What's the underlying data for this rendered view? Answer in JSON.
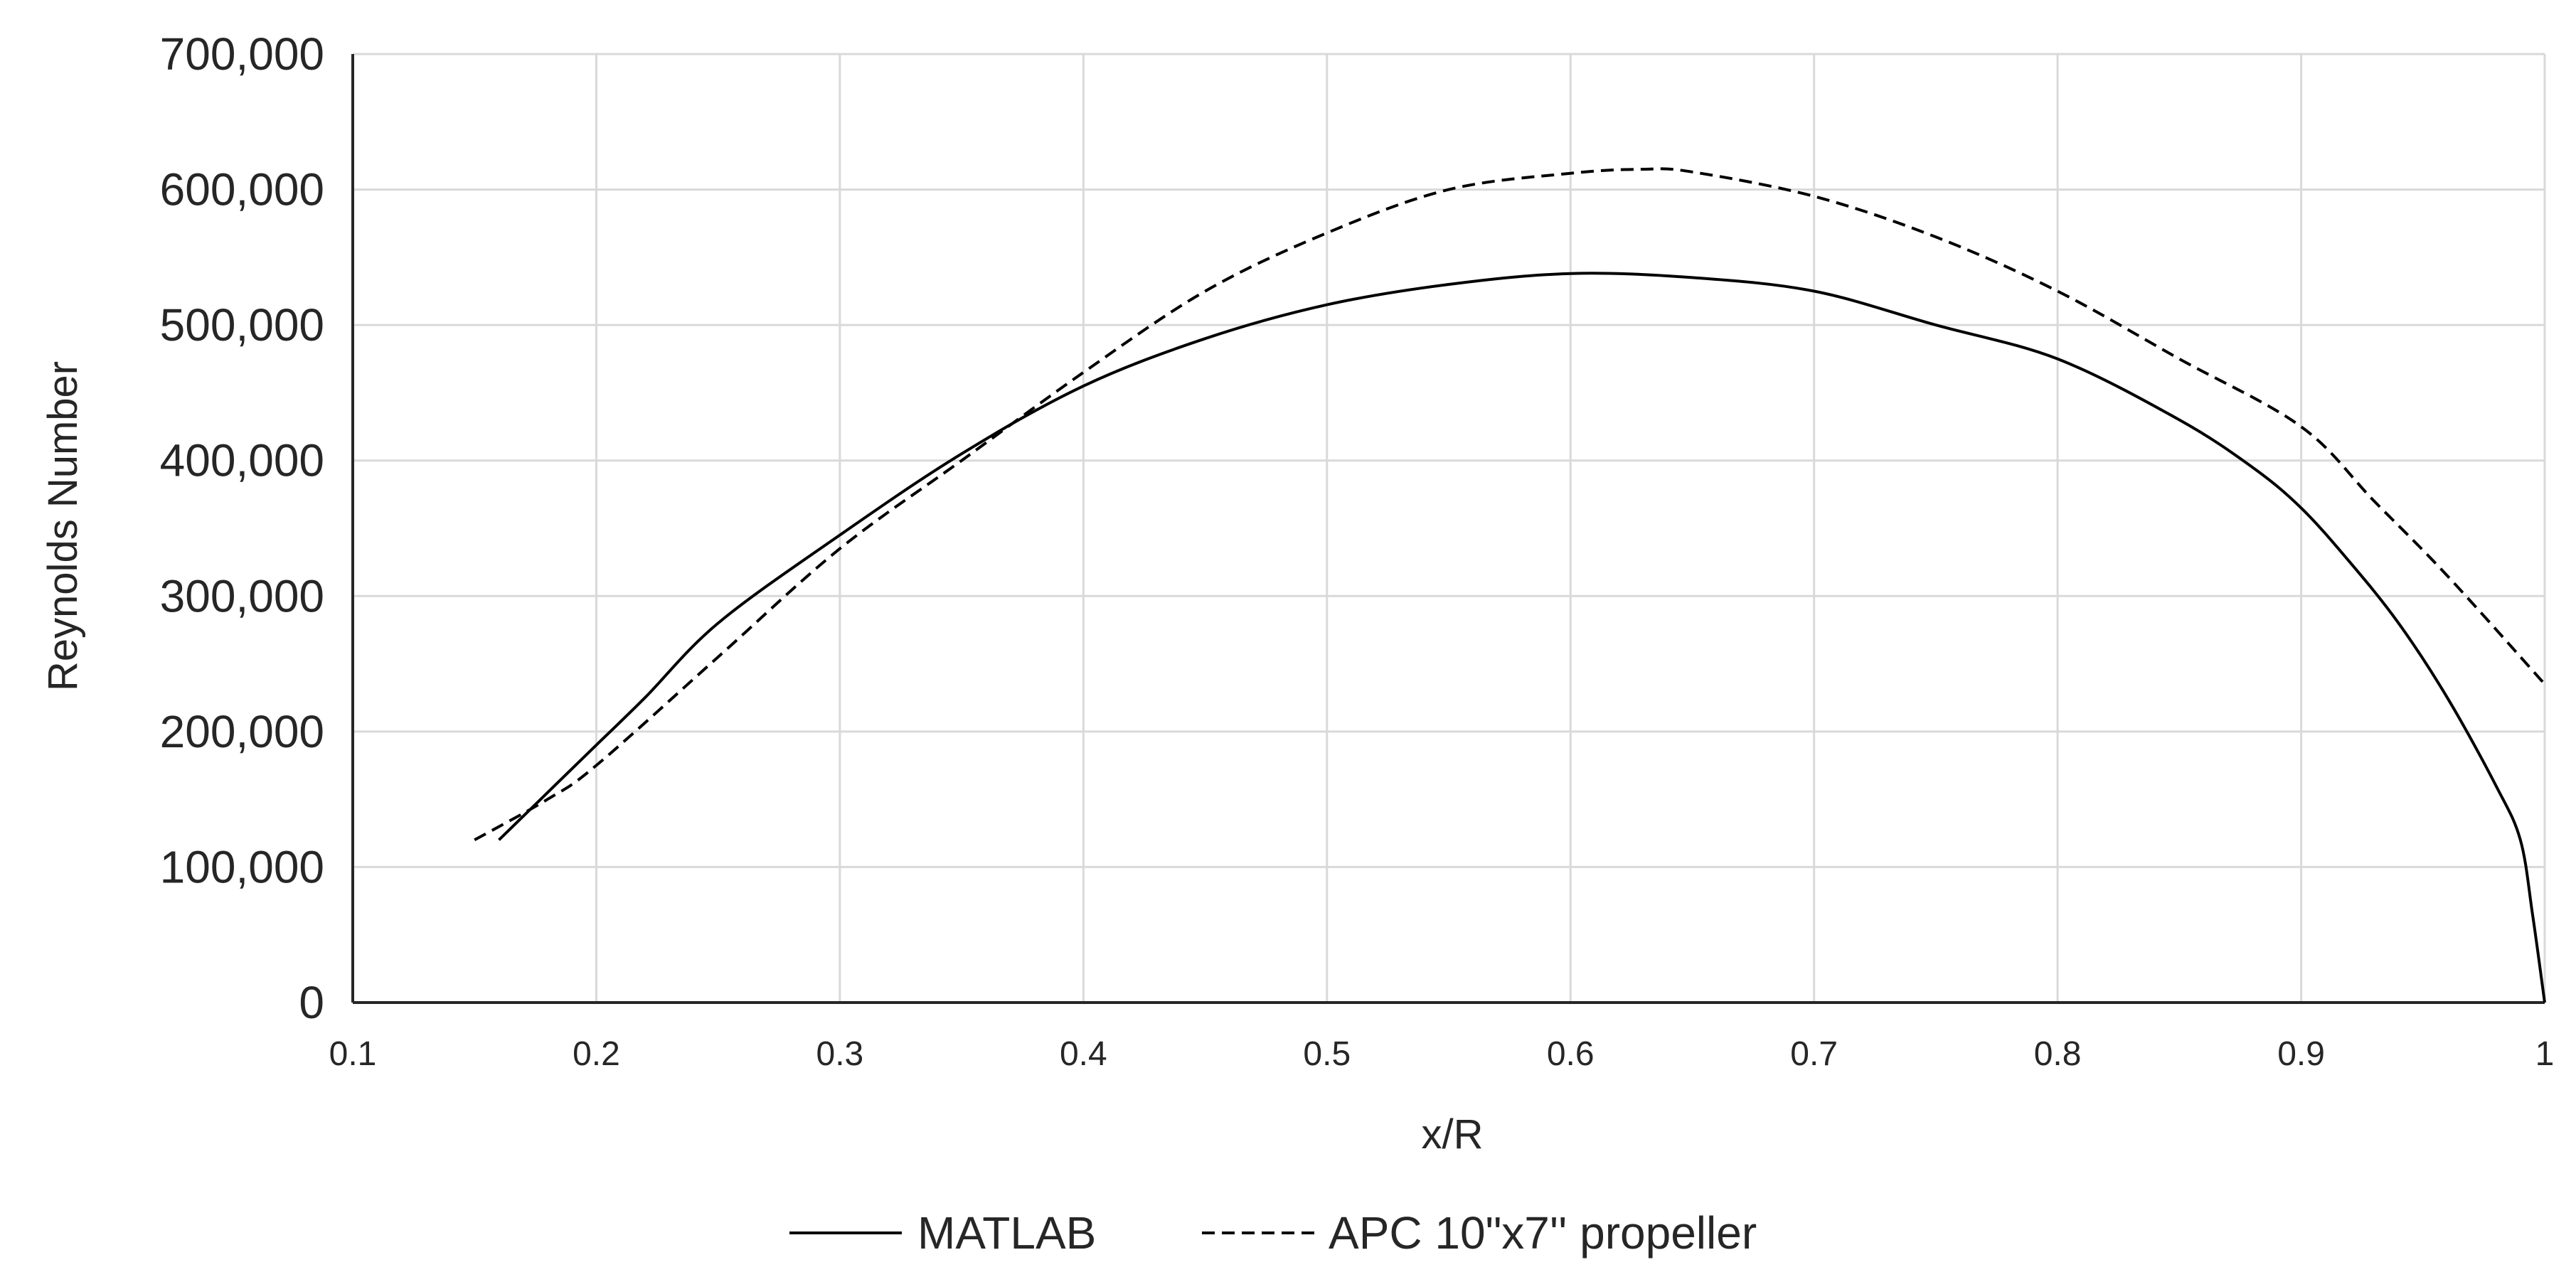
{
  "chart_data": {
    "type": "line",
    "title": "",
    "xlabel": "x/R",
    "ylabel": "Reynolds Number",
    "xlim": [
      0.1,
      1.0
    ],
    "ylim": [
      0,
      700000
    ],
    "x_ticks": [
      0.1,
      0.2,
      0.3,
      0.4,
      0.5,
      0.6,
      0.7,
      0.8,
      0.9,
      1.0
    ],
    "x_tick_labels": [
      "0.1",
      "0.2",
      "0.3",
      "0.4",
      "0.5",
      "0.6",
      "0.7",
      "0.8",
      "0.9",
      "1"
    ],
    "y_ticks": [
      0,
      100000,
      200000,
      300000,
      400000,
      500000,
      600000,
      700000
    ],
    "y_tick_labels": [
      "0",
      "100,000",
      "200,000",
      "300,000",
      "400,000",
      "500,000",
      "600,000",
      "700,000"
    ],
    "grid": true,
    "legend_position": "bottom",
    "series": [
      {
        "name": "MATLAB",
        "style": "solid",
        "color": "#000000",
        "x": [
          0.16,
          0.18,
          0.2,
          0.22,
          0.25,
          0.3,
          0.35,
          0.4,
          0.45,
          0.5,
          0.55,
          0.6,
          0.65,
          0.7,
          0.75,
          0.8,
          0.85,
          0.88,
          0.9,
          0.92,
          0.94,
          0.96,
          0.98,
          0.99,
          0.995,
          1.0
        ],
        "y": [
          120000,
          155000,
          190000,
          225000,
          280000,
          345000,
          405000,
          455000,
          490000,
          515000,
          530000,
          538000,
          535000,
          525000,
          500000,
          475000,
          430000,
          395000,
          365000,
          325000,
          280000,
          225000,
          160000,
          120000,
          65000,
          0
        ]
      },
      {
        "name": "APC 10\"x7'' propeller",
        "style": "dashed",
        "color": "#000000",
        "x": [
          0.15,
          0.18,
          0.2,
          0.25,
          0.3,
          0.35,
          0.4,
          0.45,
          0.5,
          0.55,
          0.6,
          0.63,
          0.65,
          0.7,
          0.75,
          0.8,
          0.85,
          0.9,
          0.93,
          0.96,
          1.0
        ],
        "y": [
          120000,
          150000,
          175000,
          255000,
          335000,
          400000,
          465000,
          525000,
          568000,
          600000,
          612000,
          615000,
          613000,
          595000,
          565000,
          525000,
          475000,
          425000,
          370000,
          315000,
          235000
        ]
      }
    ]
  }
}
